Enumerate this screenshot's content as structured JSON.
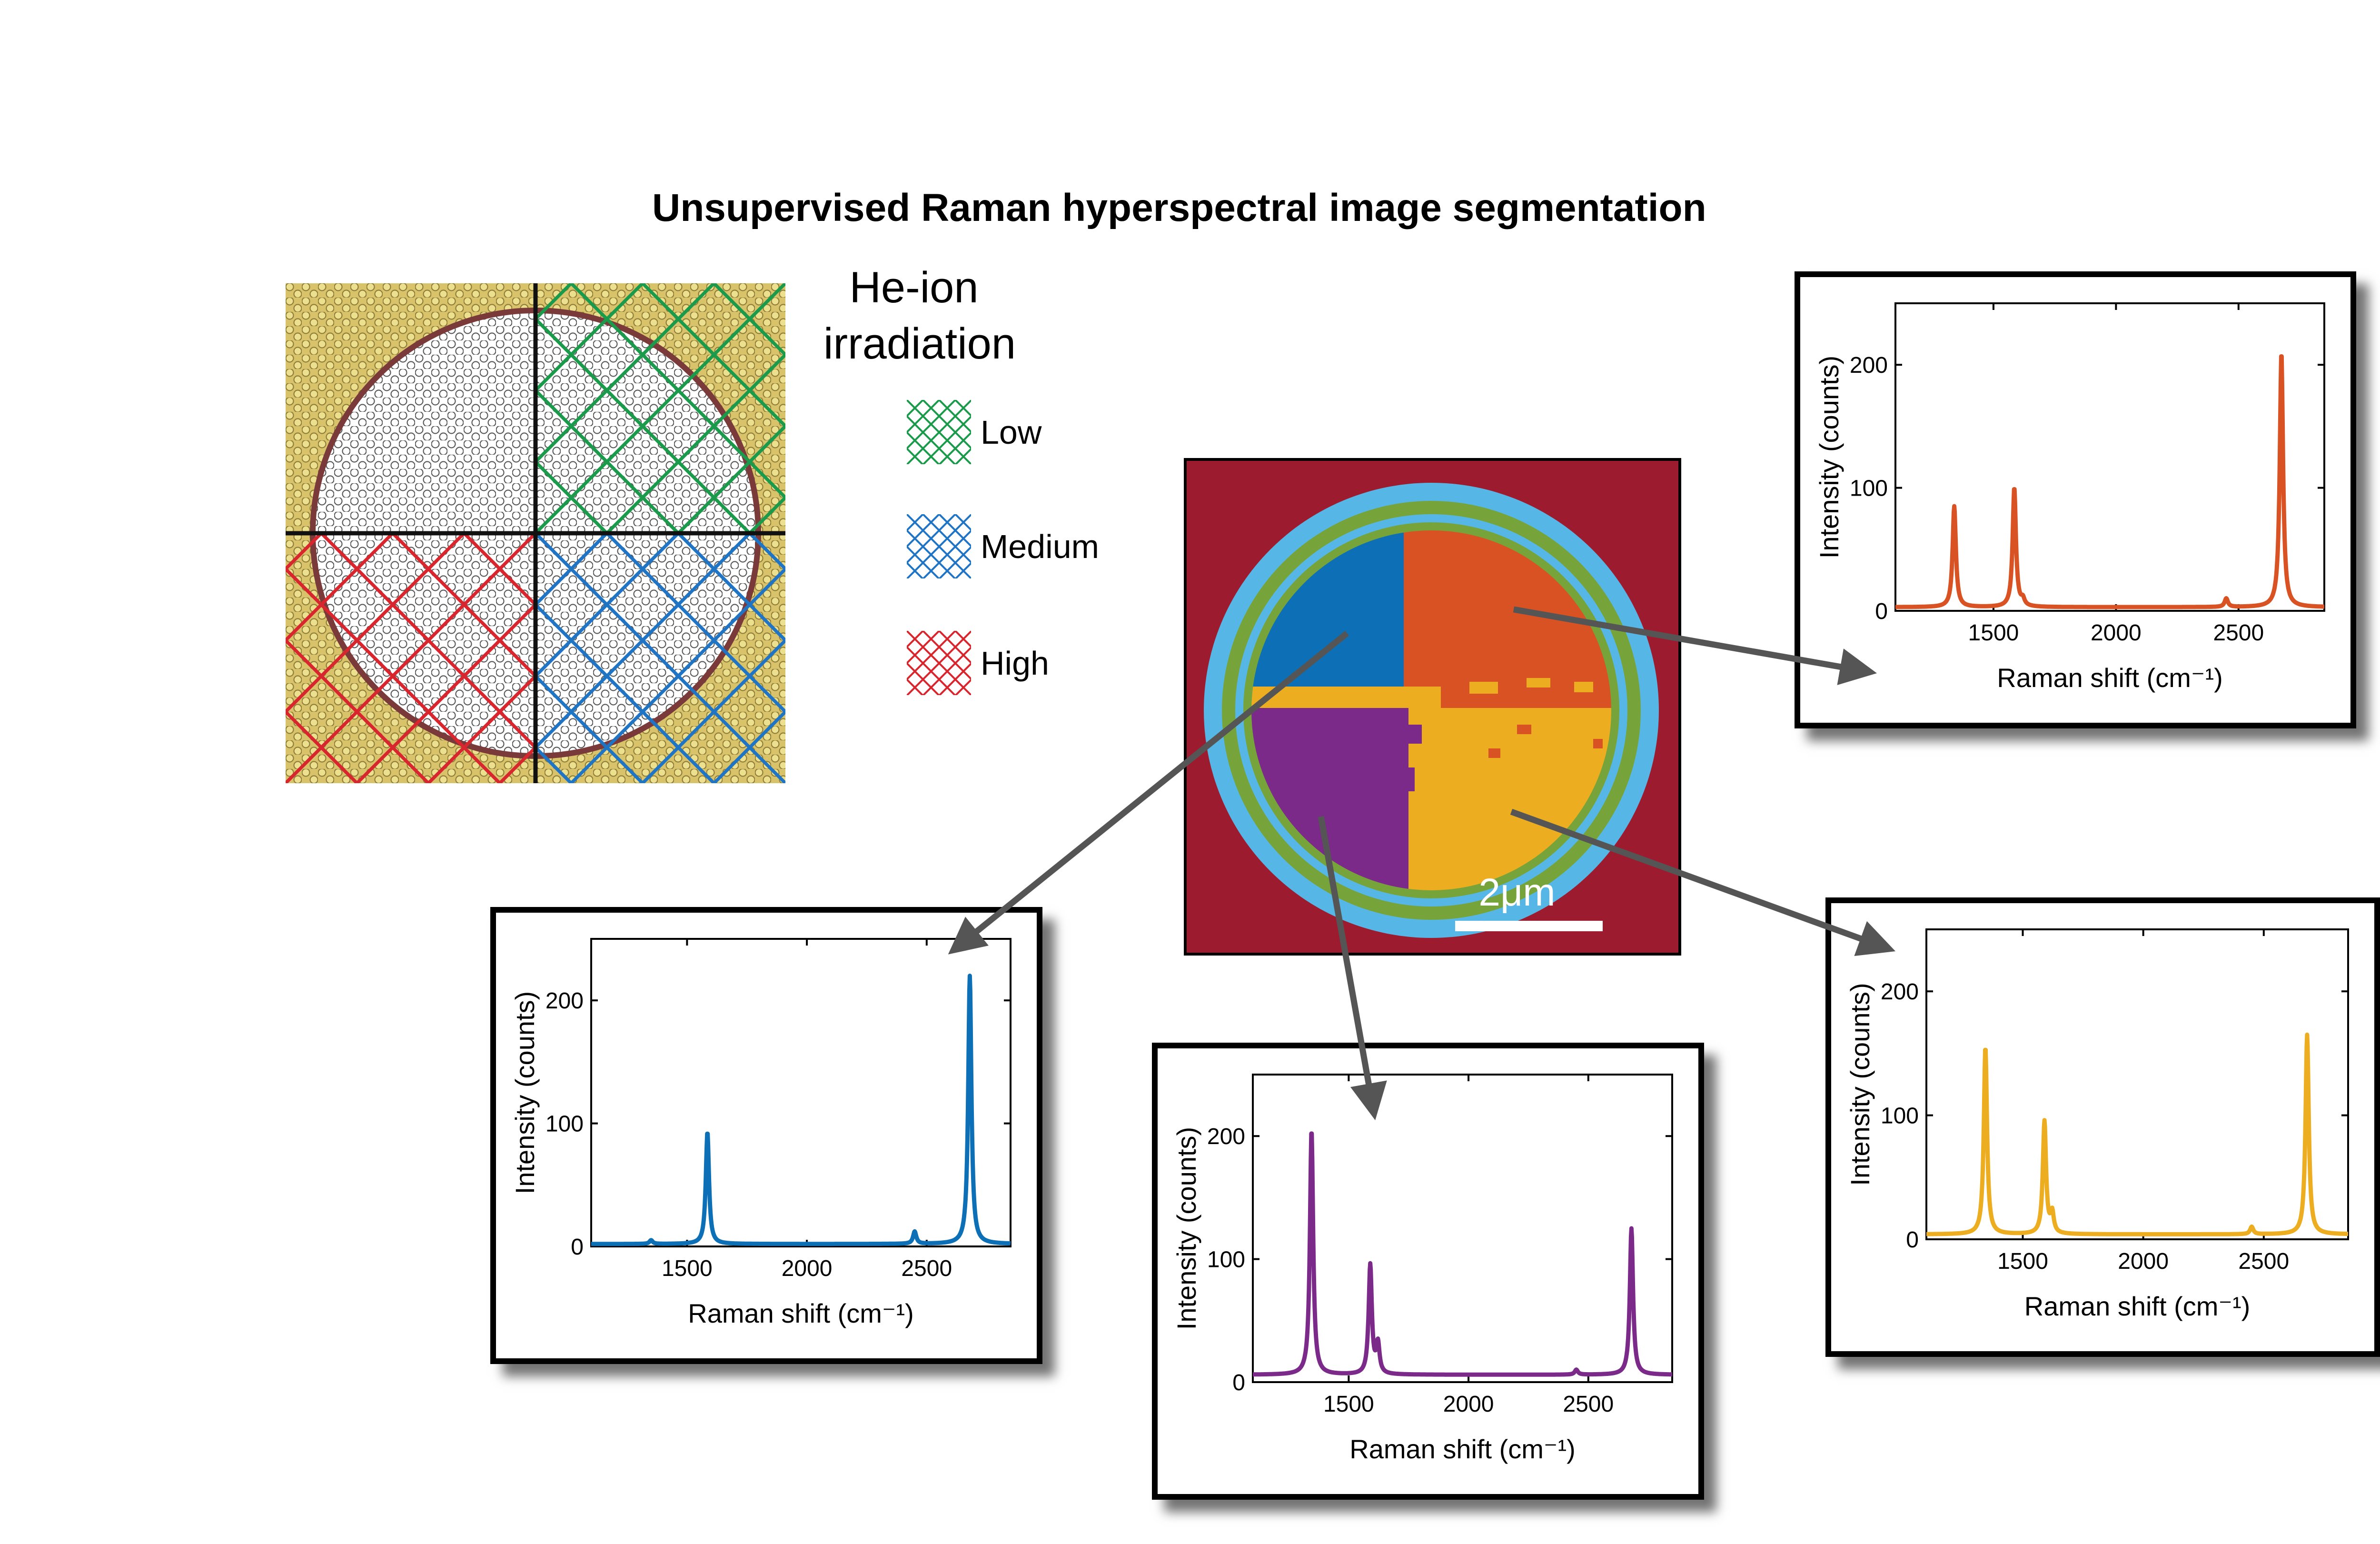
{
  "title": "Unsupervised Raman hyperspectral image segmentation",
  "legend": {
    "title_line1": "He-ion",
    "title_line2": "irradiation",
    "items": [
      {
        "label": "Low",
        "color": "#1a9a4a"
      },
      {
        "label": "Medium",
        "color": "#1f74c4"
      },
      {
        "label": "High",
        "color": "#d8262e"
      }
    ]
  },
  "schematic": {
    "background_color": "#d8c36a",
    "lattice_color": "#555555",
    "rim_color": "#7a3a3a"
  },
  "segmentation_map": {
    "scale_bar_label": "2μm",
    "colors": {
      "background": "#9c1b2e",
      "ring_outer": "#56b7e6",
      "ring_inner": "#77a43a",
      "top_left": "#0d6fb5",
      "top_right": "#d95224",
      "bottom_left": "#7b2a8a",
      "bottom_right": "#ecad20"
    }
  },
  "axis_labels": {
    "x_title": "Raman shift (cm⁻¹)",
    "y_title": "Intensity (counts)",
    "x_ticks": [
      "1500",
      "2000",
      "2500"
    ],
    "y_ticks": [
      "0",
      "100",
      "200"
    ]
  },
  "chart_data": [
    {
      "type": "line",
      "region": "top-right quadrant",
      "color": "#d95224",
      "xlim": [
        1100,
        2850
      ],
      "ylim": [
        0,
        250
      ],
      "x_ticks": [
        1500,
        2000,
        2500
      ],
      "y_ticks": [
        0,
        100,
        200
      ],
      "xlabel": "Raman shift (cm⁻¹)",
      "ylabel": "Intensity (counts)",
      "baseline": 3,
      "peaks": [
        {
          "x": 1340,
          "y": 85
        },
        {
          "x": 1585,
          "y": 100
        },
        {
          "x": 1620,
          "y": 8
        },
        {
          "x": 2450,
          "y": 10
        },
        {
          "x": 2675,
          "y": 210
        }
      ]
    },
    {
      "type": "line",
      "region": "top-left quadrant",
      "color": "#0d6fb5",
      "xlim": [
        1100,
        2850
      ],
      "ylim": [
        0,
        250
      ],
      "x_ticks": [
        1500,
        2000,
        2500
      ],
      "y_ticks": [
        0,
        100,
        200
      ],
      "xlabel": "Raman shift (cm⁻¹)",
      "ylabel": "Intensity (counts)",
      "baseline": 2,
      "peaks": [
        {
          "x": 1350,
          "y": 5
        },
        {
          "x": 1585,
          "y": 93
        },
        {
          "x": 2450,
          "y": 12
        },
        {
          "x": 2680,
          "y": 220
        }
      ]
    },
    {
      "type": "line",
      "region": "bottom-left quadrant",
      "color": "#7b2a8a",
      "xlim": [
        1100,
        2850
      ],
      "ylim": [
        0,
        250
      ],
      "x_ticks": [
        1500,
        2000,
        2500
      ],
      "y_ticks": [
        0,
        100,
        200
      ],
      "xlabel": "Raman shift (cm⁻¹)",
      "ylabel": "Intensity (counts)",
      "baseline": 6,
      "peaks": [
        {
          "x": 1345,
          "y": 205
        },
        {
          "x": 1590,
          "y": 95
        },
        {
          "x": 1622,
          "y": 30
        },
        {
          "x": 2450,
          "y": 10
        },
        {
          "x": 2680,
          "y": 125
        }
      ]
    },
    {
      "type": "line",
      "region": "bottom-right quadrant",
      "color": "#ecad20",
      "xlim": [
        1100,
        2850
      ],
      "ylim": [
        0,
        250
      ],
      "x_ticks": [
        1500,
        2000,
        2500
      ],
      "y_ticks": [
        0,
        100,
        200
      ],
      "xlabel": "Raman shift (cm⁻¹)",
      "ylabel": "Intensity (counts)",
      "baseline": 4,
      "peaks": [
        {
          "x": 1345,
          "y": 155
        },
        {
          "x": 1590,
          "y": 95
        },
        {
          "x": 1622,
          "y": 20
        },
        {
          "x": 2450,
          "y": 10
        },
        {
          "x": 2680,
          "y": 165
        }
      ]
    }
  ]
}
